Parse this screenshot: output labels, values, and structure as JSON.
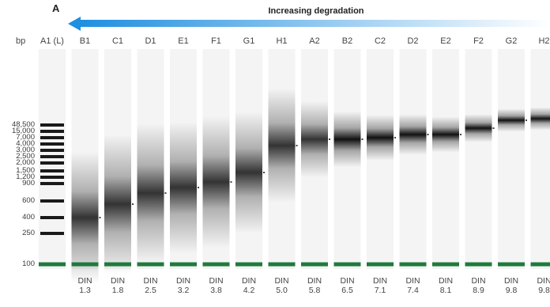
{
  "panel_label": "A",
  "arrow_label": "Increasing degradation",
  "bp_label": "bp",
  "lanes": [
    {
      "well": "A1 (L)",
      "din_label": "",
      "din_value": ""
    },
    {
      "well": "B1",
      "din_label": "DIN",
      "din_value": "1.3"
    },
    {
      "well": "C1",
      "din_label": "DIN",
      "din_value": "1.8"
    },
    {
      "well": "D1",
      "din_label": "DIN",
      "din_value": "2.5"
    },
    {
      "well": "E1",
      "din_label": "DIN",
      "din_value": "3.2"
    },
    {
      "well": "F1",
      "din_label": "DIN",
      "din_value": "3.8"
    },
    {
      "well": "G1",
      "din_label": "DIN",
      "din_value": "4.2"
    },
    {
      "well": "H1",
      "din_label": "DIN",
      "din_value": "5.0"
    },
    {
      "well": "A2",
      "din_label": "DIN",
      "din_value": "5.8"
    },
    {
      "well": "B2",
      "din_label": "DIN",
      "din_value": "6.5"
    },
    {
      "well": "C2",
      "din_label": "DIN",
      "din_value": "7.1"
    },
    {
      "well": "D2",
      "din_label": "DIN",
      "din_value": "7.4"
    },
    {
      "well": "E2",
      "din_label": "DIN",
      "din_value": "8.1"
    },
    {
      "well": "F2",
      "din_label": "DIN",
      "din_value": "8.9"
    },
    {
      "well": "G2",
      "din_label": "DIN",
      "din_value": "9.8"
    },
    {
      "well": "H2",
      "din_label": "DIN",
      "din_value": "9.8"
    }
  ],
  "ladder_sizes": [
    "48,500",
    "15,000",
    "7,000",
    "4,000",
    "3,000",
    "2,500",
    "2,000",
    "1,500",
    "1,200",
    "900",
    "600",
    "400",
    "250",
    "100"
  ],
  "colors": {
    "arrow_start": "#1f8fe0",
    "arrow_end": "#ffffff",
    "marker_band": "#1e7a3c",
    "lane_bg": "#f4f4f4",
    "band": "#111111"
  }
}
